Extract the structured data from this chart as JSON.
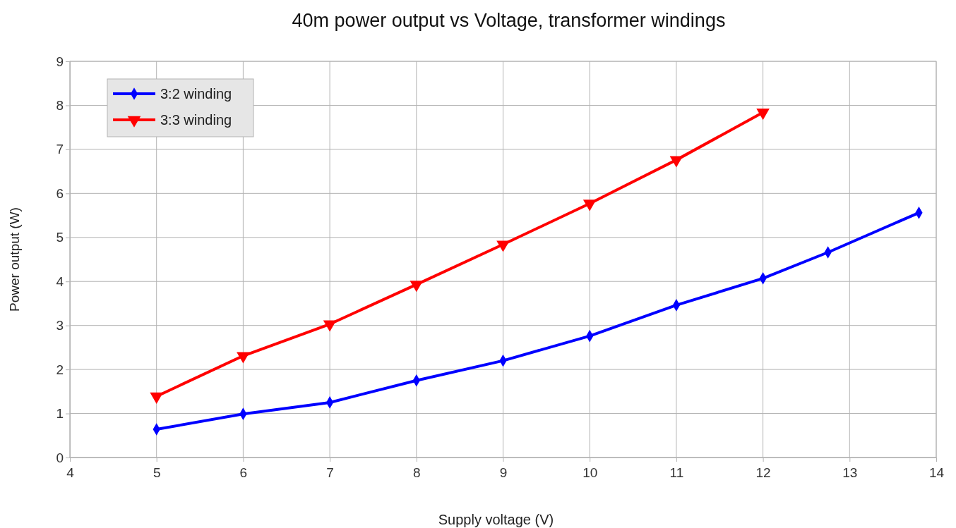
{
  "chart_data": {
    "type": "line",
    "title": "40m power output vs Voltage, transformer windings",
    "xlabel": "Supply voltage (V)",
    "ylabel": "Power output (W)",
    "xlim": [
      4,
      14
    ],
    "xticks": [
      4,
      5,
      6,
      7,
      8,
      9,
      10,
      11,
      12,
      13,
      14
    ],
    "ylim": [
      0,
      9
    ],
    "yticks": [
      0,
      1,
      2,
      3,
      4,
      5,
      6,
      7,
      8,
      9
    ],
    "grid": true,
    "legend": "top left",
    "series": [
      {
        "name": "3:2 winding",
        "color": "#0000ff",
        "marker": "diamond",
        "x": [
          5,
          6,
          7,
          8,
          9,
          10,
          11,
          12,
          12.75,
          13.8
        ],
        "values": [
          0.64,
          0.99,
          1.25,
          1.75,
          2.2,
          2.76,
          3.46,
          4.07,
          4.66,
          5.56
        ]
      },
      {
        "name": "3:3 winding",
        "color": "#ff0000",
        "marker": "triangle",
        "x": [
          5,
          6,
          7,
          8,
          9,
          10,
          11,
          12
        ],
        "values": [
          1.39,
          2.31,
          3.03,
          3.93,
          4.84,
          5.77,
          6.76,
          7.84
        ]
      }
    ]
  }
}
